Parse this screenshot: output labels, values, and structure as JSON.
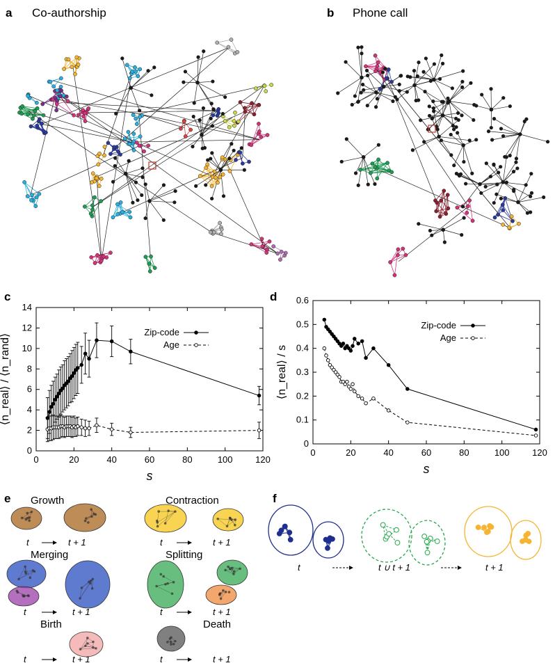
{
  "panels": {
    "a": {
      "letter": "a",
      "title": "Co-authorship"
    },
    "b": {
      "letter": "b",
      "title": "Phone call"
    },
    "c": {
      "letter": "c"
    },
    "d": {
      "letter": "d"
    },
    "e": {
      "letter": "e"
    },
    "f": {
      "letter": "f"
    }
  },
  "network_colors": [
    "#1a1a1a",
    "#d6327a",
    "#7a2e8e",
    "#2a3a9c",
    "#1f9c54",
    "#2ab0e0",
    "#f5b532",
    "#8c1f2e",
    "#b0b0b0",
    "#c8d84a",
    "#e04040",
    "#b06bb0"
  ],
  "chart_data": [
    {
      "type": "line",
      "panel": "c",
      "xlabel": "s",
      "ylabel": "⟨n_real⟩ / ⟨n_rand⟩",
      "xlim": [
        0,
        120
      ],
      "ylim": [
        0,
        14
      ],
      "xticks": [
        0,
        20,
        40,
        60,
        80,
        100,
        120
      ],
      "yticks": [
        0,
        2,
        4,
        6,
        8,
        10,
        12,
        14
      ],
      "legend": "top-right",
      "series": [
        {
          "name": "Zip-code",
          "style": "solid-filled",
          "x": [
            6,
            7,
            8,
            9,
            10,
            11,
            12,
            13,
            14,
            15,
            16,
            17,
            18,
            19,
            20,
            21,
            22,
            24,
            26,
            28,
            32,
            40,
            50,
            118
          ],
          "y": [
            3.2,
            3.8,
            4.3,
            4.6,
            5.0,
            5.3,
            5.6,
            5.9,
            6.1,
            6.4,
            6.6,
            6.8,
            7.1,
            7.3,
            7.6,
            7.9,
            8.1,
            8.4,
            9.5,
            9.0,
            10.8,
            10.7,
            9.7,
            5.4
          ],
          "err": [
            2.0,
            2.1,
            2.1,
            2.2,
            2.2,
            2.2,
            2.3,
            2.3,
            2.3,
            2.4,
            2.4,
            2.4,
            2.4,
            2.5,
            2.5,
            2.5,
            2.5,
            1.8,
            2.0,
            1.8,
            1.7,
            1.5,
            1.2,
            0.9
          ]
        },
        {
          "name": "Age",
          "style": "dashed-open",
          "x": [
            6,
            7,
            8,
            9,
            10,
            11,
            12,
            13,
            14,
            15,
            16,
            17,
            18,
            19,
            20,
            21,
            22,
            24,
            26,
            28,
            32,
            40,
            50,
            118
          ],
          "y": [
            2.1,
            2.2,
            2.2,
            2.3,
            2.3,
            2.3,
            2.3,
            2.4,
            2.4,
            2.3,
            2.4,
            2.4,
            2.4,
            2.3,
            2.4,
            2.3,
            2.4,
            2.3,
            2.2,
            2.2,
            2.5,
            2.1,
            1.8,
            2.0
          ],
          "err": [
            1.2,
            1.2,
            1.2,
            1.2,
            1.1,
            1.1,
            1.1,
            1.1,
            1.0,
            1.0,
            1.0,
            1.0,
            1.0,
            1.0,
            1.0,
            0.9,
            0.9,
            0.8,
            0.8,
            0.7,
            0.7,
            0.6,
            0.5,
            0.8
          ]
        }
      ]
    },
    {
      "type": "line",
      "panel": "d",
      "xlabel": "s",
      "ylabel": "⟨n_real⟩ / s",
      "xlim": [
        0,
        120
      ],
      "ylim": [
        0,
        0.6
      ],
      "xticks": [
        0,
        20,
        40,
        60,
        80,
        100,
        120
      ],
      "yticks": [
        0,
        0.1,
        0.2,
        0.3,
        0.4,
        0.5,
        0.6
      ],
      "legend": "top-right",
      "series": [
        {
          "name": "Zip-code",
          "style": "solid-filled",
          "x": [
            6,
            7,
            8,
            9,
            10,
            11,
            12,
            13,
            14,
            15,
            16,
            17,
            18,
            19,
            20,
            21,
            22,
            24,
            26,
            28,
            32,
            40,
            50,
            118
          ],
          "y": [
            0.52,
            0.49,
            0.48,
            0.47,
            0.46,
            0.45,
            0.44,
            0.43,
            0.42,
            0.41,
            0.42,
            0.4,
            0.41,
            0.4,
            0.39,
            0.41,
            0.44,
            0.42,
            0.43,
            0.36,
            0.4,
            0.33,
            0.23,
            0.06
          ]
        },
        {
          "name": "Age",
          "style": "dashed-open",
          "x": [
            6,
            7,
            8,
            9,
            10,
            11,
            12,
            13,
            14,
            15,
            16,
            17,
            18,
            19,
            20,
            21,
            22,
            24,
            26,
            28,
            32,
            40,
            50,
            118
          ],
          "y": [
            0.4,
            0.37,
            0.35,
            0.33,
            0.32,
            0.31,
            0.3,
            0.29,
            0.28,
            0.26,
            0.26,
            0.25,
            0.26,
            0.24,
            0.23,
            0.25,
            0.22,
            0.2,
            0.19,
            0.17,
            0.19,
            0.14,
            0.09,
            0.035
          ]
        }
      ]
    }
  ],
  "events": {
    "growth": {
      "title": "Growth",
      "t": "t",
      "t1": "t + 1",
      "color": "#a8651f"
    },
    "contraction": {
      "title": "Contraction",
      "t": "t",
      "t1": "t + 1",
      "color": "#f5c518"
    },
    "merging": {
      "title": "Merging",
      "t": "t",
      "t1": "t + 1",
      "color": "#2a4fc0",
      "color2": "#9b3fa8"
    },
    "splitting": {
      "title": "Splitting",
      "t": "t",
      "t1": "t + 1",
      "color": "#34a853",
      "color2": "#f08a3c"
    },
    "birth": {
      "title": "Birth",
      "t": "t",
      "t1": "t + 1",
      "color": "#f1a3a3"
    },
    "death": {
      "title": "Death",
      "t": "t",
      "t1": "t + 1",
      "color": "#555555"
    }
  },
  "matching": {
    "t": "t",
    "union": "t ∪ t + 1",
    "t1": "t + 1",
    "color_t": "#1f2f8f",
    "color_union": "#22a84a",
    "color_t1": "#f5b532"
  }
}
